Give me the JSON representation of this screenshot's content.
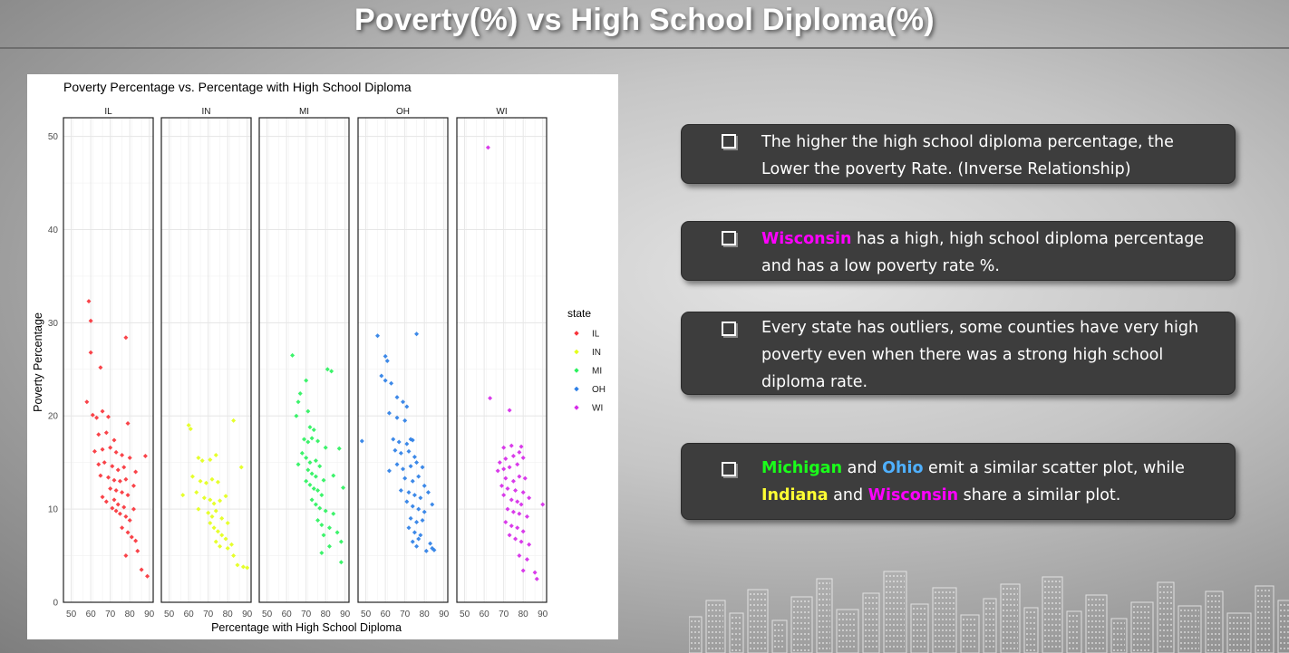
{
  "slide": {
    "title": "Poverty(%) vs High School Diploma(%)"
  },
  "bullets": [
    {
      "text": "The higher the high school diploma percentage, the Lower the poverty Rate. (Inverse Relationship)"
    },
    {
      "highlight": "Wisconsin",
      "text": " has a high, high school diploma percentage and has a low poverty rate %."
    },
    {
      "text": "Every state has outliers, some counties have very high poverty even when there was a strong high school diploma rate."
    },
    {
      "hl1": "Michigan",
      "mid1": " and ",
      "hl2": "Ohio",
      "mid2": " emit a similar scatter plot, while ",
      "hl3": "Indiana",
      "mid3": " and ",
      "hl4": "Wisconsin",
      "tail": " share a similar plot."
    }
  ],
  "colors": {
    "IL": "#f8333a",
    "IN": "#e4ff1a",
    "MI": "#2bf25e",
    "OH": "#2d7fe6",
    "WI": "#d62ae8",
    "slide_bg": "#b0b0b0",
    "box_bg": "#3d3d3d"
  },
  "chart_data": {
    "type": "scatter",
    "title": "Poverty Percentage vs. Percentage with High School Diploma",
    "xlabel": "Percentage with High School Diploma",
    "ylabel": "Poverty Percentage",
    "xlim": [
      46,
      92
    ],
    "ylim": [
      0,
      52
    ],
    "xticks": [
      50,
      60,
      70,
      80,
      90
    ],
    "yticks": [
      0,
      10,
      20,
      30,
      40,
      50
    ],
    "grid": true,
    "facets": [
      "IL",
      "IN",
      "MI",
      "OH",
      "WI"
    ],
    "legend": {
      "title": "state",
      "position": "right",
      "entries": [
        "IL",
        "IN",
        "MI",
        "OH",
        "WI"
      ]
    },
    "series": [
      {
        "name": "IL",
        "points": [
          [
            59,
            32.3
          ],
          [
            60,
            30.2
          ],
          [
            60,
            26.8
          ],
          [
            65,
            25.2
          ],
          [
            78,
            28.4
          ],
          [
            58,
            21.5
          ],
          [
            61,
            20.1
          ],
          [
            63,
            19.8
          ],
          [
            66,
            20.5
          ],
          [
            69,
            19.9
          ],
          [
            79,
            19.2
          ],
          [
            64,
            18.0
          ],
          [
            68,
            18.2
          ],
          [
            72,
            17.4
          ],
          [
            62,
            16.2
          ],
          [
            66,
            16.4
          ],
          [
            70,
            16.6
          ],
          [
            73,
            16.1
          ],
          [
            76,
            15.8
          ],
          [
            80,
            15.5
          ],
          [
            88,
            15.7
          ],
          [
            64,
            14.8
          ],
          [
            67,
            15.0
          ],
          [
            71,
            14.6
          ],
          [
            74,
            14.2
          ],
          [
            77,
            14.5
          ],
          [
            83,
            14.0
          ],
          [
            65,
            13.6
          ],
          [
            69,
            13.4
          ],
          [
            72,
            13.1
          ],
          [
            75,
            13.0
          ],
          [
            78,
            13.2
          ],
          [
            82,
            12.5
          ],
          [
            70,
            12.2
          ],
          [
            73,
            12.0
          ],
          [
            76,
            11.8
          ],
          [
            79,
            11.5
          ],
          [
            72,
            11.0
          ],
          [
            74,
            10.5
          ],
          [
            77,
            10.2
          ],
          [
            66,
            11.3
          ],
          [
            68,
            10.8
          ],
          [
            71,
            10.1
          ],
          [
            73,
            9.8
          ],
          [
            75,
            9.5
          ],
          [
            78,
            9.2
          ],
          [
            80,
            8.8
          ],
          [
            82,
            10.0
          ],
          [
            76,
            8.0
          ],
          [
            79,
            7.5
          ],
          [
            81,
            7.0
          ],
          [
            83,
            6.6
          ],
          [
            78,
            5.0
          ],
          [
            84,
            5.5
          ],
          [
            86,
            3.5
          ],
          [
            89,
            2.8
          ]
        ]
      },
      {
        "name": "IN",
        "points": [
          [
            60,
            19.0
          ],
          [
            61,
            18.6
          ],
          [
            83,
            19.5
          ],
          [
            65,
            15.5
          ],
          [
            67,
            15.2
          ],
          [
            71,
            15.3
          ],
          [
            74,
            15.8
          ],
          [
            62,
            13.5
          ],
          [
            66,
            13.0
          ],
          [
            69,
            12.8
          ],
          [
            72,
            13.2
          ],
          [
            75,
            12.9
          ],
          [
            87,
            14.5
          ],
          [
            57,
            11.5
          ],
          [
            64,
            11.8
          ],
          [
            68,
            11.2
          ],
          [
            71,
            11.0
          ],
          [
            73,
            10.6
          ],
          [
            76,
            10.9
          ],
          [
            79,
            11.4
          ],
          [
            65,
            10.0
          ],
          [
            70,
            9.6
          ],
          [
            72,
            9.2
          ],
          [
            74,
            9.8
          ],
          [
            77,
            9.0
          ],
          [
            80,
            8.5
          ],
          [
            71,
            8.5
          ],
          [
            73,
            8.0
          ],
          [
            75,
            7.6
          ],
          [
            77,
            7.2
          ],
          [
            79,
            6.8
          ],
          [
            82,
            6.2
          ],
          [
            74,
            6.5
          ],
          [
            76,
            6.0
          ],
          [
            80,
            5.8
          ],
          [
            83,
            5.0
          ],
          [
            85,
            4.0
          ],
          [
            88,
            3.8
          ],
          [
            90,
            3.7
          ]
        ]
      },
      {
        "name": "MI",
        "points": [
          [
            63,
            26.5
          ],
          [
            70,
            23.8
          ],
          [
            81,
            25.0
          ],
          [
            83,
            24.8
          ],
          [
            67,
            22.4
          ],
          [
            66,
            21.5
          ],
          [
            71,
            20.5
          ],
          [
            65,
            20.0
          ],
          [
            72,
            18.8
          ],
          [
            74,
            18.5
          ],
          [
            69,
            17.5
          ],
          [
            71,
            17.2
          ],
          [
            73,
            17.6
          ],
          [
            76,
            17.3
          ],
          [
            80,
            16.6
          ],
          [
            87,
            16.5
          ],
          [
            68,
            16.0
          ],
          [
            70,
            15.5
          ],
          [
            72,
            15.0
          ],
          [
            75,
            15.2
          ],
          [
            77,
            14.6
          ],
          [
            66,
            14.8
          ],
          [
            71,
            14.2
          ],
          [
            73,
            13.8
          ],
          [
            75,
            13.5
          ],
          [
            79,
            13.1
          ],
          [
            84,
            13.6
          ],
          [
            70,
            13.0
          ],
          [
            72,
            12.6
          ],
          [
            74,
            12.2
          ],
          [
            76,
            12.0
          ],
          [
            78,
            11.5
          ],
          [
            89,
            12.3
          ],
          [
            73,
            11.0
          ],
          [
            75,
            10.5
          ],
          [
            77,
            10.1
          ],
          [
            80,
            9.8
          ],
          [
            84,
            9.5
          ],
          [
            76,
            8.8
          ],
          [
            78,
            8.3
          ],
          [
            82,
            8.0
          ],
          [
            79,
            7.2
          ],
          [
            86,
            7.5
          ],
          [
            82,
            6.0
          ],
          [
            88,
            6.5
          ],
          [
            78,
            5.3
          ],
          [
            88,
            4.3
          ]
        ]
      },
      {
        "name": "OH",
        "points": [
          [
            48,
            17.3
          ],
          [
            56,
            28.6
          ],
          [
            76,
            28.8
          ],
          [
            60,
            26.4
          ],
          [
            61,
            25.9
          ],
          [
            58,
            24.3
          ],
          [
            60,
            23.8
          ],
          [
            63,
            23.5
          ],
          [
            66,
            22.0
          ],
          [
            69,
            21.5
          ],
          [
            71,
            21.0
          ],
          [
            62,
            20.3
          ],
          [
            66,
            19.8
          ],
          [
            70,
            19.5
          ],
          [
            64,
            17.5
          ],
          [
            67,
            17.2
          ],
          [
            71,
            17.0
          ],
          [
            73,
            17.5
          ],
          [
            74,
            17.4
          ],
          [
            65,
            16.3
          ],
          [
            68,
            16.0
          ],
          [
            72,
            16.2
          ],
          [
            75,
            15.6
          ],
          [
            62,
            14.1
          ],
          [
            66,
            14.8
          ],
          [
            69,
            14.3
          ],
          [
            73,
            14.6
          ],
          [
            76,
            15.0
          ],
          [
            79,
            14.5
          ],
          [
            70,
            13.3
          ],
          [
            74,
            13.0
          ],
          [
            77,
            13.5
          ],
          [
            80,
            12.5
          ],
          [
            68,
            12.0
          ],
          [
            72,
            11.8
          ],
          [
            75,
            11.5
          ],
          [
            78,
            11.2
          ],
          [
            82,
            11.8
          ],
          [
            71,
            10.8
          ],
          [
            74,
            10.3
          ],
          [
            77,
            10.0
          ],
          [
            80,
            9.7
          ],
          [
            84,
            10.5
          ],
          [
            73,
            9.0
          ],
          [
            76,
            8.6
          ],
          [
            79,
            8.8
          ],
          [
            72,
            8.0
          ],
          [
            75,
            7.5
          ],
          [
            78,
            7.2
          ],
          [
            74,
            6.5
          ],
          [
            77,
            6.8
          ],
          [
            83,
            6.3
          ],
          [
            76,
            6.0
          ],
          [
            81,
            5.5
          ],
          [
            84,
            5.8
          ],
          [
            85,
            5.6
          ]
        ]
      },
      {
        "name": "WI",
        "points": [
          [
            62,
            48.8
          ],
          [
            63,
            21.9
          ],
          [
            73,
            20.6
          ],
          [
            70,
            16.6
          ],
          [
            74,
            16.8
          ],
          [
            79,
            16.7
          ],
          [
            68,
            15.0
          ],
          [
            71,
            15.4
          ],
          [
            75,
            15.7
          ],
          [
            78,
            16.1
          ],
          [
            80,
            15.5
          ],
          [
            67,
            14.1
          ],
          [
            70,
            14.3
          ],
          [
            73,
            14.5
          ],
          [
            77,
            14.8
          ],
          [
            71,
            13.3
          ],
          [
            75,
            13.0
          ],
          [
            78,
            13.5
          ],
          [
            81,
            13.3
          ],
          [
            69,
            12.5
          ],
          [
            72,
            12.2
          ],
          [
            76,
            12.0
          ],
          [
            80,
            11.8
          ],
          [
            83,
            11.2
          ],
          [
            70,
            11.5
          ],
          [
            74,
            11.0
          ],
          [
            77,
            10.8
          ],
          [
            79,
            10.5
          ],
          [
            90,
            10.5
          ],
          [
            72,
            10.0
          ],
          [
            75,
            9.7
          ],
          [
            78,
            9.5
          ],
          [
            82,
            9.2
          ],
          [
            71,
            8.6
          ],
          [
            74,
            8.2
          ],
          [
            77,
            8.0
          ],
          [
            80,
            7.6
          ],
          [
            73,
            7.2
          ],
          [
            76,
            6.8
          ],
          [
            79,
            6.5
          ],
          [
            83,
            6.2
          ],
          [
            78,
            5.0
          ],
          [
            82,
            4.6
          ],
          [
            80,
            3.4
          ],
          [
            86,
            3.2
          ],
          [
            87,
            2.5
          ]
        ]
      }
    ]
  }
}
